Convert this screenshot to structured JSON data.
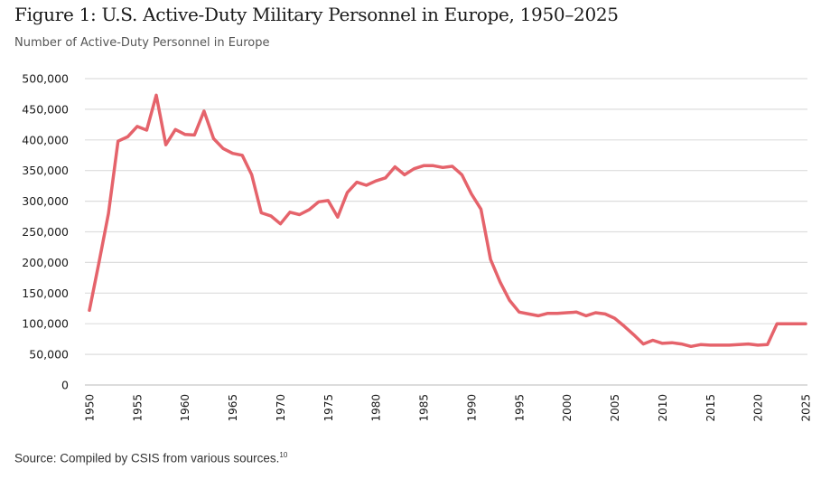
{
  "chart_data": {
    "type": "line",
    "title": "Figure 1: U.S. Active-Duty Military Personnel in Europe, 1950–2025",
    "subtitle": "Number of Active-Duty Personnel in Europe",
    "xlabel": "",
    "ylabel": "Number of Active-Duty Personnel in Europe",
    "xlim": [
      1950,
      2025
    ],
    "ylim": [
      0,
      500000
    ],
    "grid": true,
    "legend": "none",
    "line_color": "#e5636b",
    "y_ticks": [
      0,
      50000,
      100000,
      150000,
      200000,
      250000,
      300000,
      350000,
      400000,
      450000,
      500000
    ],
    "y_tick_labels": [
      "0",
      "50,000",
      "100,000",
      "150,000",
      "200,000",
      "250,000",
      "300,000",
      "350,000",
      "400,000",
      "450,000",
      "500,000"
    ],
    "x_ticks": [
      1950,
      1955,
      1960,
      1965,
      1970,
      1975,
      1980,
      1985,
      1990,
      1995,
      2000,
      2005,
      2010,
      2015,
      2020,
      2025
    ],
    "x_tick_labels": [
      "1950",
      "1955",
      "1960",
      "1965",
      "1970",
      "1975",
      "1980",
      "1985",
      "1990",
      "1995",
      "2000",
      "2005",
      "2010",
      "2015",
      "2020",
      "2025"
    ],
    "series": [
      {
        "name": "U.S. Active-Duty Personnel in Europe",
        "x": [
          1950,
          1951,
          1952,
          1953,
          1954,
          1955,
          1956,
          1957,
          1958,
          1959,
          1960,
          1961,
          1962,
          1963,
          1964,
          1965,
          1966,
          1967,
          1968,
          1969,
          1970,
          1971,
          1972,
          1973,
          1974,
          1975,
          1976,
          1977,
          1978,
          1979,
          1980,
          1981,
          1982,
          1983,
          1984,
          1985,
          1986,
          1987,
          1988,
          1989,
          1990,
          1991,
          1992,
          1993,
          1994,
          1995,
          1996,
          1997,
          1998,
          1999,
          2000,
          2001,
          2002,
          2003,
          2004,
          2005,
          2006,
          2007,
          2008,
          2009,
          2010,
          2011,
          2012,
          2013,
          2014,
          2015,
          2016,
          2017,
          2018,
          2019,
          2020,
          2021,
          2022,
          2023,
          2024,
          2025
        ],
        "values": [
          122000,
          200000,
          280000,
          398000,
          405000,
          422000,
          416000,
          473000,
          392000,
          417000,
          409000,
          408000,
          447000,
          402000,
          386000,
          378000,
          375000,
          343000,
          281000,
          276000,
          263000,
          282000,
          278000,
          286000,
          299000,
          301000,
          274000,
          314000,
          331000,
          326000,
          333000,
          338000,
          356000,
          343000,
          353000,
          358000,
          358000,
          355000,
          357000,
          343000,
          312000,
          287000,
          205000,
          168000,
          138000,
          119000,
          116000,
          113000,
          117000,
          117000,
          118000,
          119000,
          113000,
          118000,
          116000,
          109000,
          96000,
          82000,
          67000,
          73000,
          68000,
          69000,
          67000,
          63000,
          66000,
          65000,
          65000,
          65000,
          66000,
          67000,
          65000,
          66000,
          100000,
          100000,
          100000,
          100000
        ]
      }
    ]
  },
  "footer": {
    "source_text": "Source: Compiled by CSIS from various sources.",
    "source_note": "10"
  }
}
